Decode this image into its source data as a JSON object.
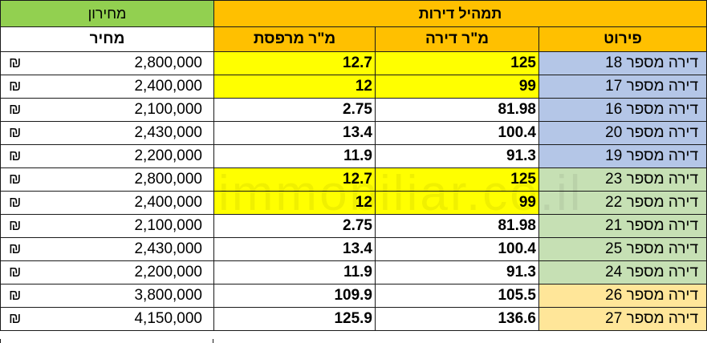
{
  "header": {
    "pricelist_title": "מחירון",
    "apartments_title": "תמהיל דירות",
    "price_col": "מחיר",
    "balcony_col": "מ\"ר מרפסת",
    "apartment_col": "מ\"ר דירה",
    "detail_col": "פירוט"
  },
  "currency_symbol": "₪",
  "watermark": "immobiliar.co.il",
  "colors": {
    "pricelist_header": "#92d050",
    "apartments_header": "#ffc000",
    "highlight_yellow": "#ffff00",
    "group_blue": "#b4c6e7",
    "group_green": "#c6e0b4",
    "group_peach": "#ffe699"
  },
  "rows": [
    {
      "price": "2,800,000",
      "balcony": "12.7",
      "apt": "125",
      "name": "דירה מספר 18"
    },
    {
      "price": "2,400,000",
      "balcony": "12",
      "apt": "99",
      "name": "דירה מספר 17"
    },
    {
      "price": "2,100,000",
      "balcony": "2.75",
      "apt": "81.98",
      "name": "דירה מספר 16"
    },
    {
      "price": "2,430,000",
      "balcony": "13.4",
      "apt": "100.4",
      "name": "דירה מספר 20"
    },
    {
      "price": "2,200,000",
      "balcony": "11.9",
      "apt": "91.3",
      "name": "דירה מספר 19"
    },
    {
      "price": "2,800,000",
      "balcony": "12.7",
      "apt": "125",
      "name": "דירה מספר 23"
    },
    {
      "price": "2,400,000",
      "balcony": "12",
      "apt": "99",
      "name": "דירה מספר 22"
    },
    {
      "price": "2,100,000",
      "balcony": "2.75",
      "apt": "81.98",
      "name": "דירה מספר 21"
    },
    {
      "price": "2,430,000",
      "balcony": "13.4",
      "apt": "100.4",
      "name": "דירה מספר 25"
    },
    {
      "price": "2,200,000",
      "balcony": "11.9",
      "apt": "91.3",
      "name": "דירה מספר 24"
    },
    {
      "price": "3,800,000",
      "balcony": "109.9",
      "apt": "105.5",
      "name": "דירה מספר 26"
    },
    {
      "price": "4,150,000",
      "balcony": "125.9",
      "apt": "136.6",
      "name": "דירה מספר 27"
    }
  ]
}
